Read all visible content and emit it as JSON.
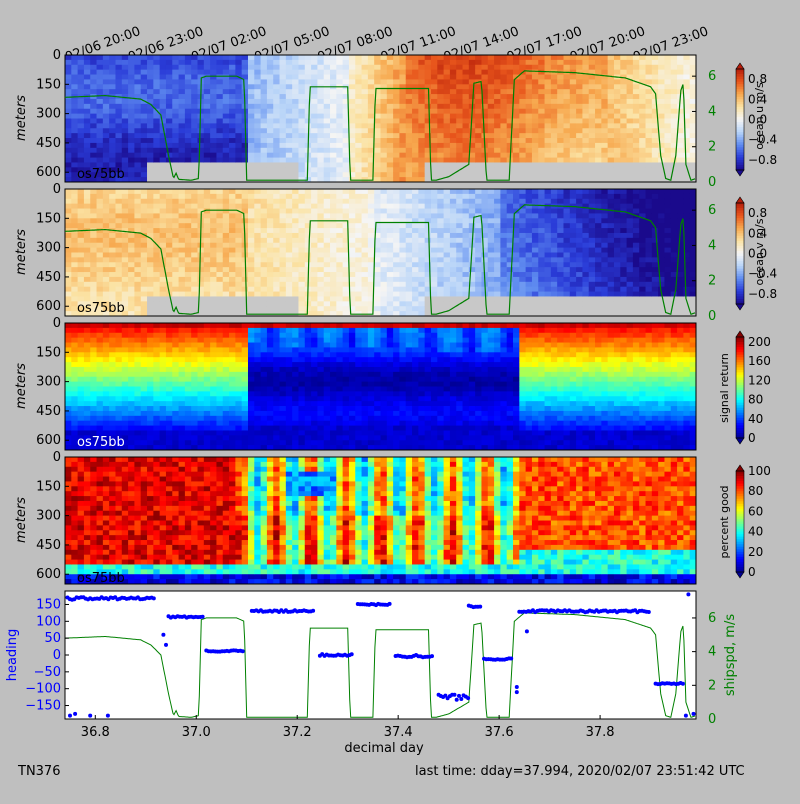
{
  "figure": {
    "cruise_id": "TN376",
    "footer_time": "last time: dday=37.994,  2020/02/07 23:51:42 UTC",
    "xlabel": "decimal day",
    "top_time_ticks": [
      {
        "t": 36.8333,
        "label": "02/06 20:00"
      },
      {
        "t": 36.9583,
        "label": "02/06 23:00"
      },
      {
        "t": 37.0833,
        "label": "02/07 02:00"
      },
      {
        "t": 37.2083,
        "label": "02/07 05:00"
      },
      {
        "t": 37.3333,
        "label": "02/07 08:00"
      },
      {
        "t": 37.4583,
        "label": "02/07 11:00"
      },
      {
        "t": 37.5833,
        "label": "02/07 14:00"
      },
      {
        "t": 37.7083,
        "label": "02/07 17:00"
      },
      {
        "t": 37.8333,
        "label": "02/07 20:00"
      },
      {
        "t": 37.9583,
        "label": "02/07 23:00"
      }
    ]
  },
  "chart_data": [
    {
      "type": "heatmap",
      "id": "u",
      "ylabel": "meters",
      "instrument": "os75bb",
      "colorbar_label": "ocean u m/s",
      "colorbar_ticks": [
        "0.8",
        "0.4",
        "0.0",
        "−0.4",
        "−0.8"
      ],
      "colormap": [
        "#1a0a8c",
        "#2a3cd8",
        "#5f8cf0",
        "#b8d4f8",
        "#f5f5f5",
        "#fbe3a4",
        "#f7a84e",
        "#e8561c",
        "#b51c0a"
      ],
      "clim": [
        -1.0,
        1.0
      ],
      "x_range": [
        36.74,
        37.99
      ],
      "y_ticks": [
        "0",
        "150",
        "300",
        "450",
        "600"
      ],
      "y_range": [
        0,
        650
      ],
      "secondary_y_ticks": [
        "0",
        "2",
        "4",
        "6"
      ],
      "secondary_y_range": [
        0,
        7.2
      ],
      "secondary_color": "#008000"
    },
    {
      "type": "heatmap",
      "id": "v",
      "ylabel": "meters",
      "instrument": "os75bb",
      "colorbar_label": "ocean v m/s",
      "colorbar_ticks": [
        "0.8",
        "0.4",
        "0.0",
        "−0.4",
        "−0.8"
      ],
      "colormap": [
        "#1a0a8c",
        "#2a3cd8",
        "#5f8cf0",
        "#b8d4f8",
        "#f5f5f5",
        "#fbe3a4",
        "#f7a84e",
        "#e8561c",
        "#b51c0a"
      ],
      "clim": [
        -1.0,
        1.0
      ],
      "x_range": [
        36.74,
        37.99
      ],
      "y_ticks": [
        "0",
        "150",
        "300",
        "450",
        "600"
      ],
      "y_range": [
        0,
        650
      ],
      "secondary_y_ticks": [
        "0",
        "2",
        "4",
        "6"
      ],
      "secondary_y_range": [
        0,
        7.2
      ],
      "secondary_color": "#008000"
    },
    {
      "type": "heatmap",
      "id": "amp",
      "ylabel": "meters",
      "instrument": "os75bb",
      "colorbar_label": "signal return",
      "colorbar_ticks": [
        "200",
        "160",
        "120",
        "80",
        "40",
        "0"
      ],
      "colormap": [
        "#00008f",
        "#0000ff",
        "#0080ff",
        "#00ffff",
        "#80ff80",
        "#ffff00",
        "#ff8000",
        "#ff0000",
        "#800000"
      ],
      "clim": [
        0,
        210
      ],
      "x_range": [
        36.74,
        37.99
      ],
      "y_ticks": [
        "0",
        "150",
        "300",
        "450",
        "600"
      ],
      "y_range": [
        0,
        650
      ]
    },
    {
      "type": "heatmap",
      "id": "pg",
      "ylabel": "meters",
      "instrument": "os75bb",
      "colorbar_label": "percent good",
      "colorbar_ticks": [
        "100",
        "80",
        "60",
        "40",
        "20",
        "0"
      ],
      "colormap": [
        "#00008f",
        "#0000ff",
        "#0080ff",
        "#00ffff",
        "#80ff80",
        "#ffff00",
        "#ff8000",
        "#ff0000",
        "#800000"
      ],
      "clim": [
        0,
        100
      ],
      "x_range": [
        36.74,
        37.99
      ],
      "y_ticks": [
        "0",
        "150",
        "300",
        "450",
        "600"
      ],
      "y_range": [
        0,
        650
      ]
    },
    {
      "type": "scatter",
      "id": "nav",
      "ylabel": "heading",
      "ylabel_color": "#0000ff",
      "y2label": "shipspd, m/s",
      "y2label_color": "#008000",
      "x_range": [
        36.74,
        37.99
      ],
      "x_ticks": [
        "36.8",
        "37.0",
        "37.2",
        "37.4",
        "37.6",
        "37.8"
      ],
      "y_ticks": [
        "150",
        "100",
        "50",
        "0",
        "−50",
        "−100",
        "−150"
      ],
      "y_range": [
        -190,
        190
      ],
      "y2_ticks": [
        "0",
        "2",
        "4",
        "6"
      ],
      "y2_range": [
        0,
        7.6
      ],
      "heading_segments": [
        {
          "t0": 36.745,
          "t1": 36.92,
          "value": 168,
          "jitter": 4
        },
        {
          "t0": 36.945,
          "t1": 37.015,
          "value": 113,
          "jitter": 2
        },
        {
          "t0": 37.02,
          "t1": 37.095,
          "value": 12,
          "jitter": 2
        },
        {
          "t0": 37.11,
          "t1": 37.235,
          "value": 130,
          "jitter": 3
        },
        {
          "t0": 37.245,
          "t1": 37.31,
          "value": 0,
          "jitter": 3
        },
        {
          "t0": 37.32,
          "t1": 37.385,
          "value": 150,
          "jitter": 2
        },
        {
          "t0": 37.395,
          "t1": 37.47,
          "value": -3,
          "jitter": 4
        },
        {
          "t0": 37.48,
          "t1": 37.54,
          "value": -125,
          "jitter": 8
        },
        {
          "t0": 37.54,
          "t1": 37.565,
          "value": 145,
          "jitter": 3
        },
        {
          "t0": 37.57,
          "t1": 37.625,
          "value": -12,
          "jitter": 2
        },
        {
          "t0": 37.64,
          "t1": 37.9,
          "value": 130,
          "jitter": 3
        },
        {
          "t0": 37.91,
          "t1": 37.965,
          "value": -85,
          "jitter": 2
        }
      ],
      "heading_outliers": [
        {
          "t": 36.75,
          "v": -180
        },
        {
          "t": 36.76,
          "v": -175
        },
        {
          "t": 36.79,
          "v": -180
        },
        {
          "t": 36.825,
          "v": -180
        },
        {
          "t": 36.935,
          "v": 60
        },
        {
          "t": 36.94,
          "v": 30
        },
        {
          "t": 37.635,
          "v": -95
        },
        {
          "t": 37.635,
          "v": -110
        },
        {
          "t": 37.655,
          "v": 70
        },
        {
          "t": 37.97,
          "v": -180
        },
        {
          "t": 37.975,
          "v": 180
        },
        {
          "t": 37.985,
          "v": -175
        }
      ],
      "shipspd": [
        [
          36.74,
          4.8
        ],
        [
          36.82,
          4.9
        ],
        [
          36.89,
          4.7
        ],
        [
          36.91,
          4.4
        ],
        [
          36.93,
          3.8
        ],
        [
          36.945,
          1.5
        ],
        [
          36.955,
          0.2
        ],
        [
          36.96,
          0.5
        ],
        [
          36.965,
          0.15
        ],
        [
          36.99,
          0.1
        ],
        [
          37.005,
          0.2
        ],
        [
          37.01,
          5.9
        ],
        [
          37.02,
          6.0
        ],
        [
          37.08,
          6.0
        ],
        [
          37.095,
          5.8
        ],
        [
          37.1,
          0.1
        ],
        [
          37.22,
          0.1
        ],
        [
          37.225,
          5.4
        ],
        [
          37.3,
          5.4
        ],
        [
          37.305,
          0.1
        ],
        [
          37.35,
          0.1
        ],
        [
          37.355,
          5.3
        ],
        [
          37.46,
          5.3
        ],
        [
          37.465,
          0.1
        ],
        [
          37.475,
          0.1
        ],
        [
          37.5,
          0.3
        ],
        [
          37.54,
          1.0
        ],
        [
          37.55,
          5.6
        ],
        [
          37.565,
          5.7
        ],
        [
          37.575,
          0.1
        ],
        [
          37.62,
          0.1
        ],
        [
          37.63,
          5.8
        ],
        [
          37.65,
          6.3
        ],
        [
          37.75,
          6.2
        ],
        [
          37.85,
          5.9
        ],
        [
          37.9,
          5.4
        ],
        [
          37.91,
          5.0
        ],
        [
          37.92,
          1.5
        ],
        [
          37.93,
          0.2
        ],
        [
          37.94,
          0.1
        ],
        [
          37.95,
          1.5
        ],
        [
          37.96,
          5.2
        ],
        [
          37.965,
          5.6
        ],
        [
          37.97,
          1.0
        ],
        [
          37.98,
          0.1
        ],
        [
          37.99,
          0.2
        ]
      ]
    }
  ]
}
